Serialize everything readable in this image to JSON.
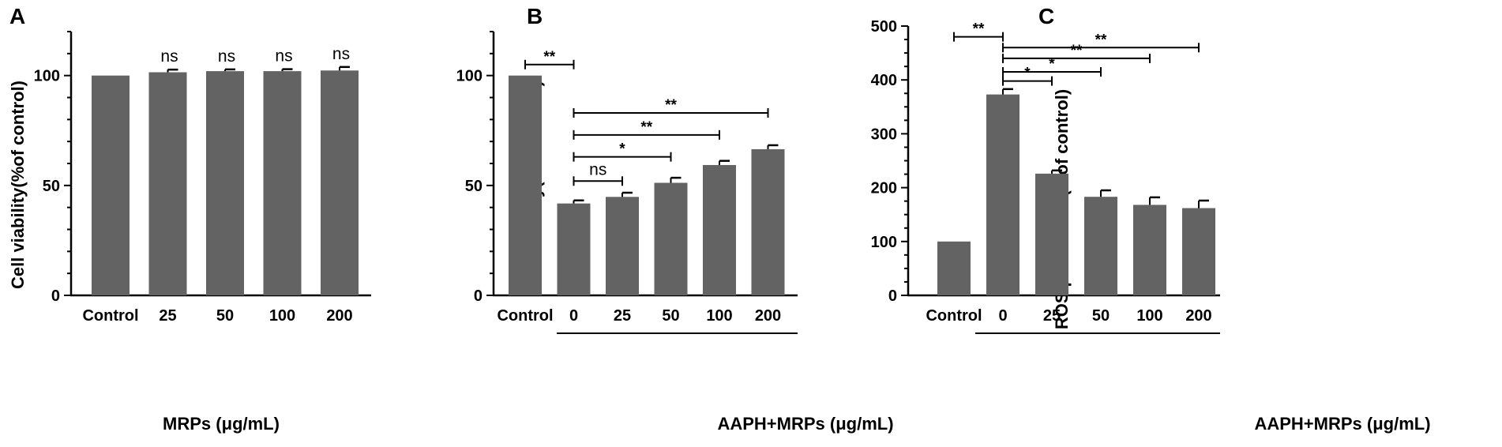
{
  "chart_data": [
    {
      "type": "bar",
      "panel": "A",
      "categories": [
        "Control",
        "25",
        "50",
        "100",
        "200"
      ],
      "values": [
        100,
        101.5,
        102,
        102,
        102.3
      ],
      "errors": [
        0,
        1.2,
        0.8,
        0.9,
        1.6
      ],
      "ylabel": "Cell viability(%of control)",
      "xlabel": "MRPs (μg/mL)",
      "ylim": [
        0,
        120
      ],
      "yticks": [
        0,
        50,
        100
      ],
      "bar_color": "#636363",
      "annotations": [
        {
          "text": "ns",
          "index": 1
        },
        {
          "text": "ns",
          "index": 2
        },
        {
          "text": "ns",
          "index": 3
        },
        {
          "text": "ns",
          "index": 4
        }
      ]
    },
    {
      "type": "bar",
      "panel": "B",
      "categories": [
        "Control",
        "0",
        "25",
        "50",
        "100",
        "200"
      ],
      "values": [
        100,
        41.8,
        44.8,
        51.2,
        59.3,
        66.5
      ],
      "errors": [
        0,
        1.4,
        1.9,
        2.3,
        1.9,
        1.8
      ],
      "ylabel": "Cell viability(%of control)",
      "xlabel": "AAPH+MRPs (μg/mL)",
      "ylim": [
        0,
        120
      ],
      "yticks": [
        0,
        50,
        100
      ],
      "bar_color": "#636363",
      "brackets": [
        {
          "from": 0,
          "to": 1,
          "y": 105,
          "text": "**"
        },
        {
          "from": 1,
          "to": 2,
          "y": 52,
          "text": "ns"
        },
        {
          "from": 1,
          "to": 3,
          "y": 63,
          "text": "*"
        },
        {
          "from": 1,
          "to": 4,
          "y": 73,
          "text": "**"
        },
        {
          "from": 1,
          "to": 5,
          "y": 83,
          "text": "**"
        }
      ]
    },
    {
      "type": "bar",
      "panel": "C",
      "categories": [
        "Control",
        "0",
        "25",
        "50",
        "100",
        "200"
      ],
      "values": [
        100,
        373,
        226,
        183,
        168,
        162
      ],
      "errors": [
        0,
        10,
        6,
        12,
        14,
        14
      ],
      "ylabel": "ROS production(%of control)",
      "xlabel": "AAPH+MRPs (μg/mL)",
      "ylim": [
        0,
        500
      ],
      "yticks": [
        0,
        100,
        200,
        300,
        400,
        500
      ],
      "bar_color": "#636363",
      "brackets": [
        {
          "from": 0,
          "to": 1,
          "y": 480,
          "text": "**"
        },
        {
          "from": 1,
          "to": 2,
          "y": 398,
          "text": "*"
        },
        {
          "from": 1,
          "to": 3,
          "y": 415,
          "text": "*"
        },
        {
          "from": 1,
          "to": 4,
          "y": 440,
          "text": "**"
        },
        {
          "from": 1,
          "to": 5,
          "y": 460,
          "text": "**"
        }
      ]
    }
  ]
}
